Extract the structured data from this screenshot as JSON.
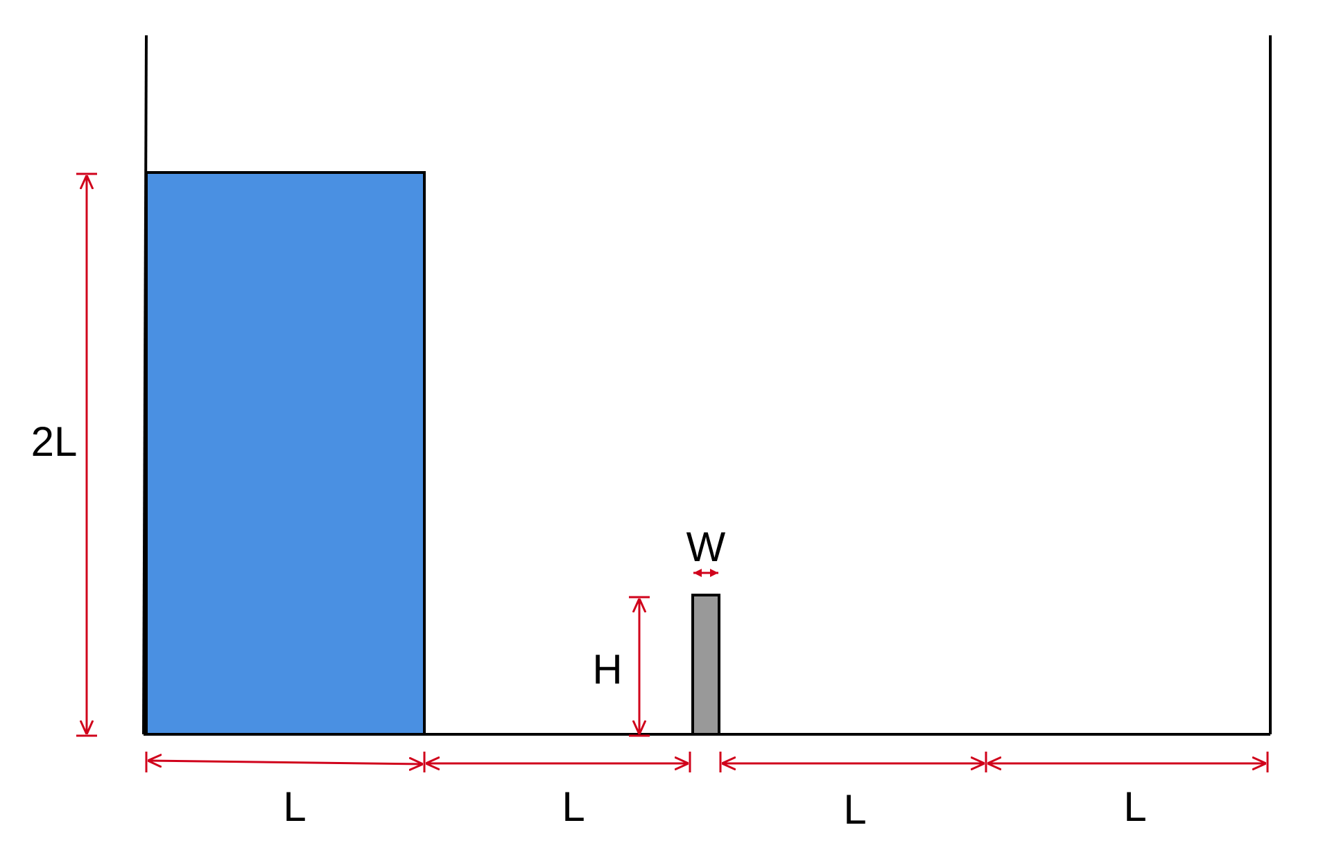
{
  "labels": {
    "column_height": "2L",
    "column_width": "L",
    "gap_to_obstacle": "L",
    "downstream_1": "L",
    "downstream_2": "L",
    "obstacle_height": "H",
    "obstacle_width": "W"
  },
  "colors": {
    "water": "#4A90E2",
    "obstacle": "#999999",
    "outline": "#000000",
    "dimension": "#D0021B",
    "background": "#FFFFFF"
  }
}
